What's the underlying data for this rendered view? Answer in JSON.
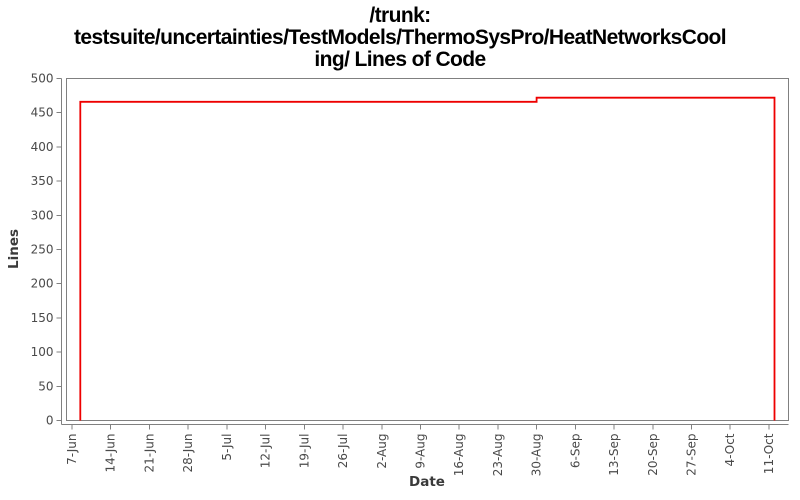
{
  "title": {
    "lines": [
      "/trunk:",
      "testsuite/uncertainties/TestModels/ThermoSysPro/HeatNetworksCool",
      "ing/ Lines of Code"
    ]
  },
  "chart_data": {
    "type": "line",
    "title": "/trunk: testsuite/uncertainties/TestModels/ThermoSysPro/HeatNetworksCooling/ Lines of Code",
    "xlabel": "Date",
    "ylabel": "Lines",
    "ylim": [
      0,
      500
    ],
    "y_ticks": [
      0,
      50,
      100,
      150,
      200,
      250,
      300,
      350,
      400,
      450,
      500
    ],
    "x_tick_labels": [
      "7-Jun",
      "14-Jun",
      "21-Jun",
      "28-Jun",
      "5-Jul",
      "12-Jul",
      "19-Jul",
      "26-Jul",
      "2-Aug",
      "9-Aug",
      "16-Aug",
      "23-Aug",
      "30-Aug",
      "6-Sep",
      "13-Sep",
      "20-Sep",
      "27-Sep",
      "4-Oct",
      "11-Oct"
    ],
    "x_tick_interval_days": 7,
    "grid": false,
    "legend": "none",
    "colors": {
      "line": "#ee0000",
      "axis": "#808080",
      "tick_text": "#4a4a4a"
    },
    "series": [
      {
        "name": "Lines of Code",
        "color": "#ee0000",
        "points_note": "pairs of [days since 7-Jun, lines-of-code value]",
        "points": [
          [
            1.5,
            0
          ],
          [
            1.5,
            466
          ],
          [
            84,
            466
          ],
          [
            84,
            472
          ],
          [
            127,
            472
          ],
          [
            127,
            0
          ]
        ]
      }
    ]
  }
}
